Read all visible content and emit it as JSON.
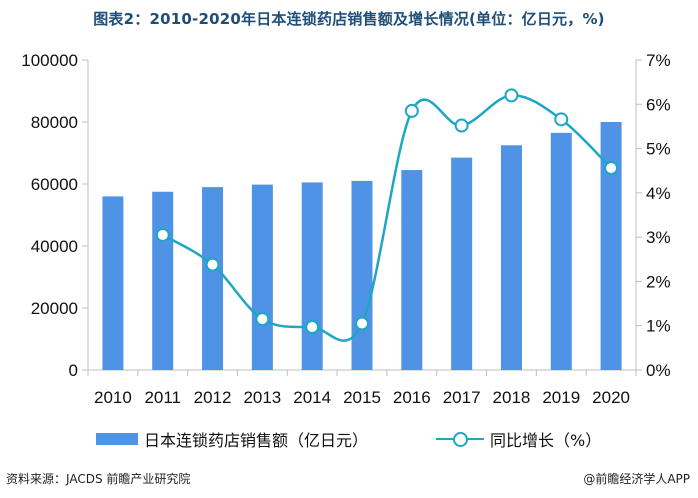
{
  "title": "图表2：2010-2020年日本连锁药店销售额及增长情况(单位：亿日元，%)",
  "footer": {
    "source": "资料来源：JACDS 前瞻产业研究院",
    "credit": "@前瞻经济学人APP"
  },
  "colors": {
    "bar": "#4f93e6",
    "line": "#1ea6c4",
    "axis": "#bfbfbf"
  },
  "chart_data": {
    "type": "bar",
    "categories": [
      "2010",
      "2011",
      "2012",
      "2013",
      "2014",
      "2015",
      "2016",
      "2017",
      "2018",
      "2019",
      "2020"
    ],
    "series": [
      {
        "name": "日本连锁药店销售额（亿日元）",
        "type": "bar",
        "axis": "left",
        "values": [
          56000,
          57500,
          59000,
          59800,
          60500,
          61000,
          64500,
          68500,
          72500,
          76500,
          80000
        ]
      },
      {
        "name": "同比增长（%）",
        "type": "line",
        "axis": "right",
        "values": [
          null,
          3.05,
          2.38,
          1.15,
          0.97,
          1.05,
          5.85,
          5.52,
          6.2,
          5.66,
          4.56
        ]
      }
    ],
    "ylim_left": [
      0,
      100000
    ],
    "yticks_left": [
      "0",
      "20000",
      "40000",
      "60000",
      "80000",
      "100000"
    ],
    "ylim_right": [
      0,
      7
    ],
    "yticks_right": [
      "0%",
      "1%",
      "2%",
      "3%",
      "4%",
      "5%",
      "6%",
      "7%"
    ],
    "legend_position": "bottom"
  }
}
